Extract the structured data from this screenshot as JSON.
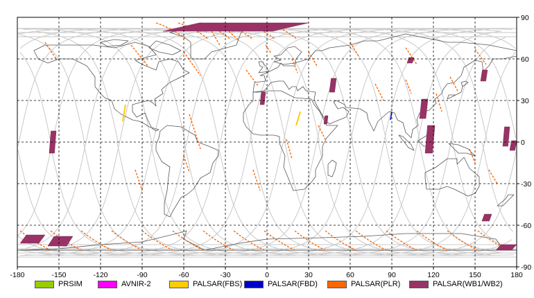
{
  "chart_data": {
    "type": "map",
    "projection": "equirectangular",
    "xlim": [
      -180,
      180
    ],
    "ylim": [
      -90,
      90
    ],
    "x_ticks": [
      "-180",
      "-150",
      "-120",
      "-90",
      "-60",
      "-30",
      "0",
      "30",
      "60",
      "90",
      "120",
      "150",
      "180"
    ],
    "y_ticks": [
      "90",
      "60",
      "30",
      "0",
      "-30",
      "-60",
      "-90"
    ],
    "grid": "dashed",
    "legend_position": "bottom",
    "legend": [
      {
        "label": "PRSIM",
        "color": "#99cc00"
      },
      {
        "label": "AVNIR-2",
        "color": "#ff00ff"
      },
      {
        "label": "PALSAR(FBS)",
        "color": "#ffcc00"
      },
      {
        "label": "PALSAR(FBD)",
        "color": "#0000cc"
      },
      {
        "label": "PALSAR(PLR)",
        "color": "#ff6600"
      },
      {
        "label": "PALSAR(WB1/WB2)",
        "color": "#993366"
      }
    ],
    "wb_patches": [
      {
        "lon": [
          -75,
          30
        ],
        "lat": [
          80,
          86
        ]
      },
      {
        "lon": [
          -157,
          -152
        ],
        "lat": [
          -8,
          8
        ]
      },
      {
        "lon": [
          -5,
          -1
        ],
        "lat": [
          27,
          36
        ]
      },
      {
        "lon": [
          45,
          50
        ],
        "lat": [
          36,
          46
        ]
      },
      {
        "lon": [
          41,
          44
        ],
        "lat": [
          13,
          19
        ]
      },
      {
        "lon": [
          101,
          106
        ],
        "lat": [
          57,
          61
        ]
      },
      {
        "lon": [
          110,
          116
        ],
        "lat": [
          17,
          31
        ]
      },
      {
        "lon": [
          114,
          121
        ],
        "lat": [
          -8,
          12
        ]
      },
      {
        "lon": [
          154,
          159
        ],
        "lat": [
          44,
          52
        ]
      },
      {
        "lon": [
          170,
          175
        ],
        "lat": [
          -3,
          11
        ]
      },
      {
        "lon": [
          175,
          180
        ],
        "lat": [
          -6,
          1
        ]
      },
      {
        "lon": [
          155,
          162
        ],
        "lat": [
          -57,
          -52
        ]
      },
      {
        "lon": [
          -178,
          -160
        ],
        "lat": [
          -73,
          -67
        ]
      },
      {
        "lon": [
          -158,
          -140
        ],
        "lat": [
          -75,
          -68
        ]
      },
      {
        "lon": [
          165,
          180
        ],
        "lat": [
          -78,
          -74
        ]
      }
    ],
    "fbs_strips": [
      {
        "lon": [
          -104,
          -102
        ],
        "lat": [
          15,
          27
        ]
      },
      {
        "lon": [
          21,
          24
        ],
        "lat": [
          12,
          22
        ]
      }
    ],
    "fbd_strips": [
      {
        "lon": [
          89,
          90
        ],
        "lat": [
          16,
          22
        ]
      }
    ]
  }
}
